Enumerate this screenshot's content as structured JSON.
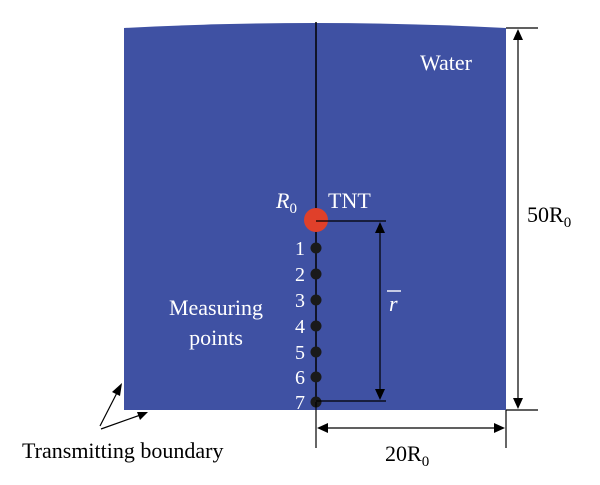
{
  "labels": {
    "water": "Water",
    "tnt": "TNT",
    "radius_symbol": "R",
    "radius_subscript": "0",
    "measuring_line1": "Measuring",
    "measuring_line2": "points",
    "transmitting_boundary": "Transmitting boundary",
    "r_bar": "r",
    "height_coef": "50R",
    "height_sub": "0",
    "width_coef": "20R",
    "width_sub": "0"
  },
  "points": [
    "1",
    "2",
    "3",
    "4",
    "5",
    "6",
    "7"
  ],
  "colors": {
    "water": "#3f51a3",
    "charge": "#e0402a",
    "point": "#1a1a1a",
    "line": "#000000",
    "label_white": "#ffffff"
  }
}
